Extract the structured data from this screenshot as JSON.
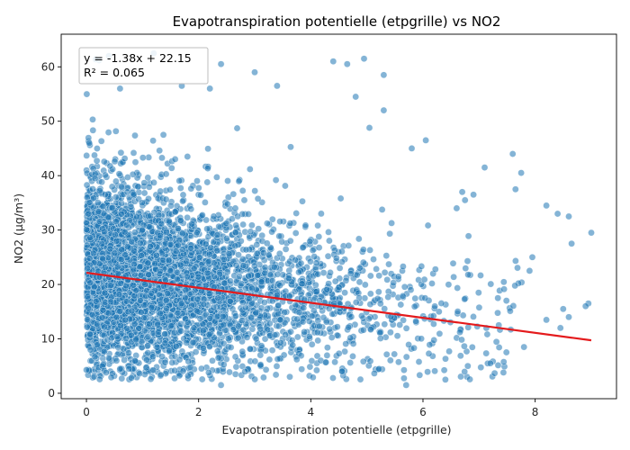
{
  "chart_data": {
    "type": "scatter",
    "title": "Evapotranspiration potentielle (etpgrille) vs NO2",
    "xlabel": "Evapotranspiration potentielle (etpgrille)",
    "ylabel": "NO2 (µg/m³)",
    "xlim": [
      -0.45,
      9.45
    ],
    "ylim": [
      -1,
      66
    ],
    "xticks": [
      0,
      2,
      4,
      6,
      8
    ],
    "yticks": [
      0,
      10,
      20,
      30,
      40,
      50,
      60
    ],
    "grid": false,
    "point_color": "#1f77b4",
    "line_color": "#e41a1c",
    "fit": {
      "slope": -1.38,
      "intercept": 22.15,
      "x_range": [
        0,
        9
      ],
      "equation_label": "y = -1.38x + 22.15",
      "r2_label": "R² = 0.065"
    },
    "annotation_position": "top-left",
    "point_count": 4500,
    "notable_points": [
      {
        "x": 0.05,
        "y": 46
      },
      {
        "x": 0.4,
        "y": 62
      },
      {
        "x": 0.6,
        "y": 56
      },
      {
        "x": 1.2,
        "y": 62.5
      },
      {
        "x": 1.7,
        "y": 56.5
      },
      {
        "x": 2.2,
        "y": 56
      },
      {
        "x": 2.4,
        "y": 60.5
      },
      {
        "x": 3.0,
        "y": 59
      },
      {
        "x": 3.4,
        "y": 56.5
      },
      {
        "x": 4.4,
        "y": 61
      },
      {
        "x": 4.65,
        "y": 60.5
      },
      {
        "x": 4.95,
        "y": 61.5
      },
      {
        "x": 5.3,
        "y": 58.5
      },
      {
        "x": 5.3,
        "y": 52
      },
      {
        "x": 4.8,
        "y": 54.5
      },
      {
        "x": 6.05,
        "y": 46.5
      },
      {
        "x": 5.8,
        "y": 45
      },
      {
        "x": 7.1,
        "y": 41.5
      },
      {
        "x": 7.6,
        "y": 44
      },
      {
        "x": 7.75,
        "y": 40.5
      },
      {
        "x": 7.65,
        "y": 37.5
      },
      {
        "x": 8.2,
        "y": 34.5
      },
      {
        "x": 8.4,
        "y": 33
      },
      {
        "x": 8.6,
        "y": 32.5
      },
      {
        "x": 8.65,
        "y": 27.5
      },
      {
        "x": 9.0,
        "y": 29.5
      },
      {
        "x": 8.95,
        "y": 16.5
      },
      {
        "x": 8.9,
        "y": 16
      },
      {
        "x": 8.6,
        "y": 14
      },
      {
        "x": 8.5,
        "y": 15.5
      },
      {
        "x": 7.8,
        "y": 8.5
      },
      {
        "x": 7.2,
        "y": 5.5
      },
      {
        "x": 6.8,
        "y": 5
      },
      {
        "x": 6.4,
        "y": 2.5
      },
      {
        "x": 5.7,
        "y": 1.5
      },
      {
        "x": 2.4,
        "y": 1.5
      },
      {
        "x": 0.8,
        "y": 2.8
      },
      {
        "x": 0.35,
        "y": 3.8
      },
      {
        "x": 0.0,
        "y": 4.3
      },
      {
        "x": 8.2,
        "y": 13.5
      },
      {
        "x": 8.45,
        "y": 12.0
      },
      {
        "x": 7.9,
        "y": 22.5
      },
      {
        "x": 7.95,
        "y": 25
      },
      {
        "x": 6.6,
        "y": 34
      },
      {
        "x": 6.9,
        "y": 36.5
      },
      {
        "x": 6.7,
        "y": 37
      },
      {
        "x": 6.75,
        "y": 35.5
      }
    ]
  }
}
